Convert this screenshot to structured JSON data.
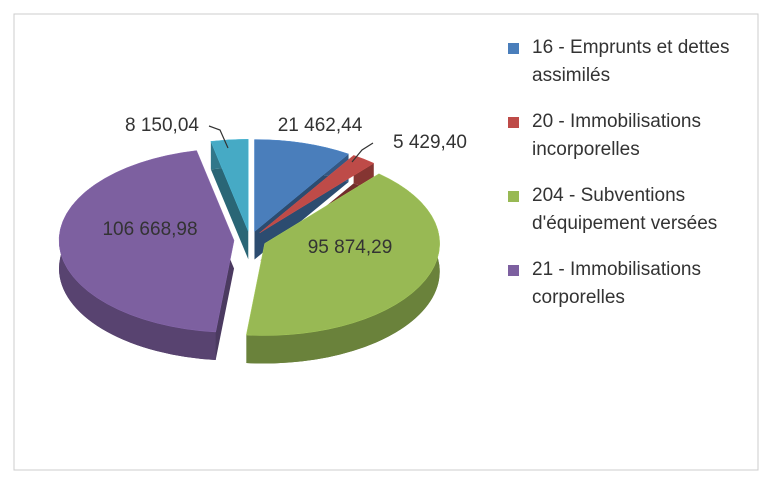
{
  "chart_data": {
    "type": "pie",
    "categories": [
      "16 - Emprunts et dettes assimilés",
      "20 - Immobilisations incorporelles",
      "204 - Subventions d'équipement versées",
      "21 - Immobilisations corporelles",
      null
    ],
    "values": [
      21462.44,
      5429.4,
      95874.29,
      106668.98,
      8150.04
    ],
    "value_labels": [
      "21 462,44",
      "5 429,40",
      "95 874,29",
      "106 668,98",
      "8 150,04"
    ],
    "colors": [
      "#4a7ebb",
      "#be4b48",
      "#98b954",
      "#7d60a0",
      "#46aac5"
    ]
  }
}
